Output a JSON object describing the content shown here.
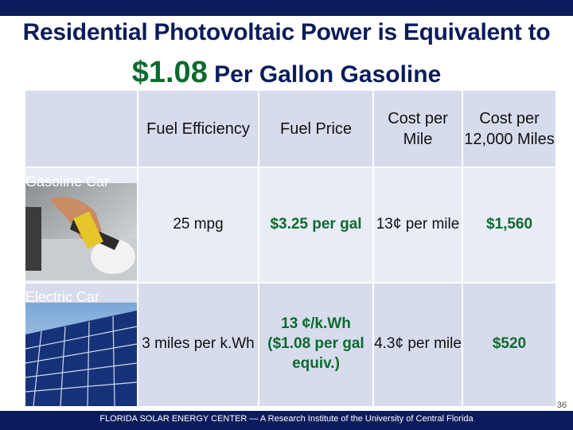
{
  "title": {
    "line1": "Residential Photovoltaic Power is Equivalent to",
    "line2_price": "$1.08",
    "line2_rest": "Per Gallon Gasoline"
  },
  "table": {
    "headers": [
      "Fuel Efficiency",
      "Fuel Price",
      "Cost per Mile",
      "Cost per 12,000 Miles"
    ],
    "rows": [
      {
        "label": "Gasoline Car",
        "image": "gas-pump-image",
        "cells": [
          "25 mpg",
          "$3.25 per gal",
          "13¢ per mile",
          "$1,560"
        ]
      },
      {
        "label": "Electric Car",
        "image": "solar-panel-image",
        "cells": [
          "3 miles per k.Wh",
          "13 ¢/k.Wh ($1.08 per gal equiv.)",
          "4.3¢ per mile",
          "$520"
        ]
      }
    ]
  },
  "footer": "FLORIDA SOLAR ENERGY CENTER — A Research Institute of the University of Central Florida",
  "page_number": "36",
  "colors": {
    "navy": "#0b1c5c",
    "green": "#0b6b2e",
    "row_dark": "#d7dced",
    "row_light": "#e9ecf5"
  }
}
